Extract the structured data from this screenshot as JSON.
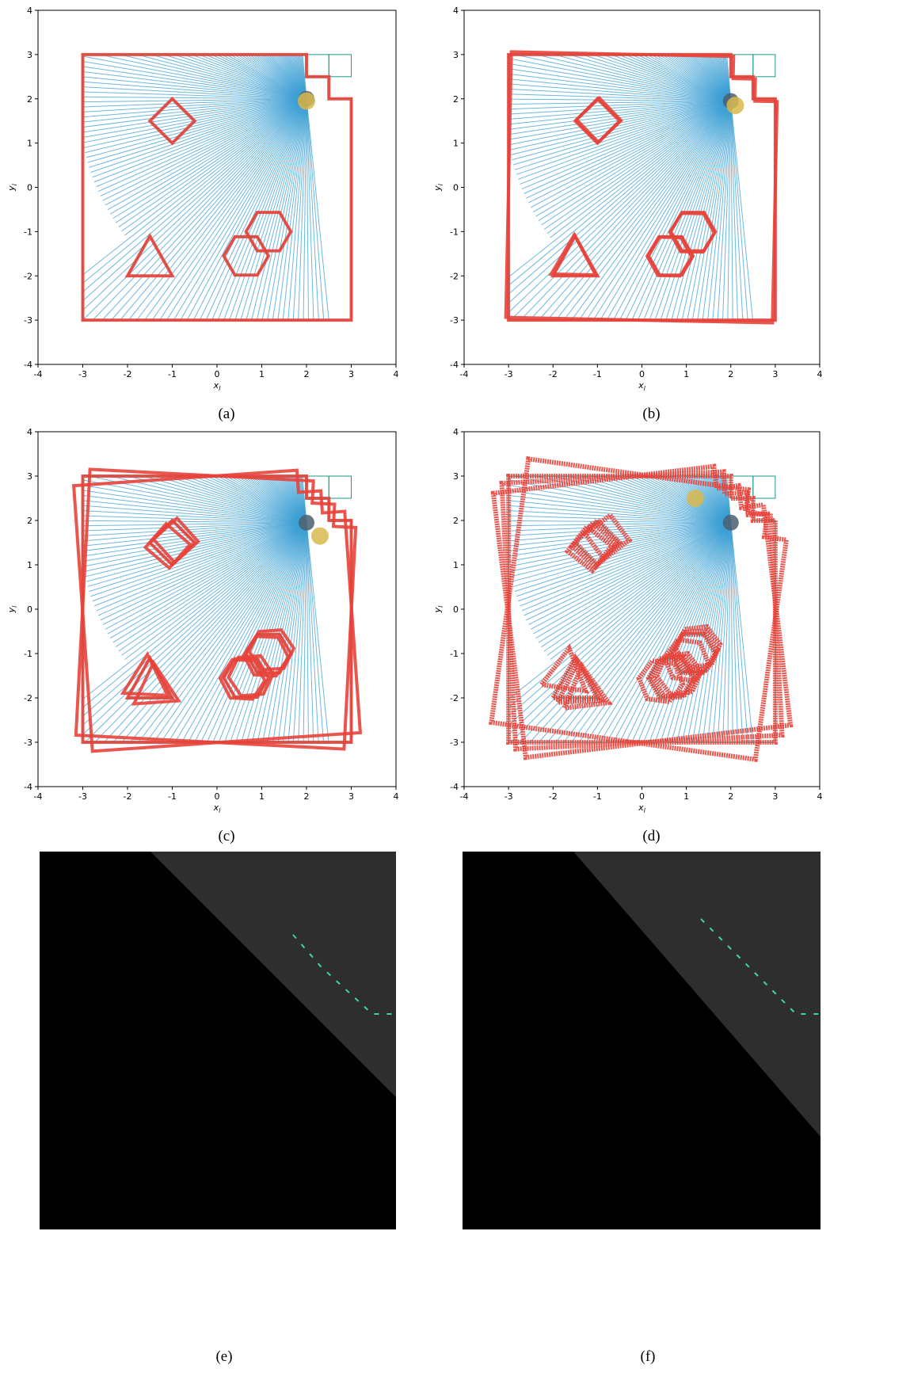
{
  "panels": [
    {
      "caption": "(a)",
      "xlabel": [
        "x",
        "l"
      ],
      "ylabel": [
        "y",
        "l"
      ],
      "xlim": [
        -4,
        4
      ],
      "ylim": [
        -4,
        4
      ],
      "xticks": [
        -4,
        -3,
        -2,
        -1,
        0,
        1,
        2,
        3,
        4
      ],
      "yticks": [
        -4,
        -3,
        -2,
        -1,
        0,
        1,
        2,
        3,
        4
      ]
    },
    {
      "caption": "(b)",
      "xlabel": [
        "x",
        "l"
      ],
      "ylabel": [
        "y",
        "l"
      ],
      "xlim": [
        -4,
        4
      ],
      "ylim": [
        -4,
        4
      ],
      "xticks": [
        -4,
        -3,
        -2,
        -1,
        0,
        1,
        2,
        3,
        4
      ],
      "yticks": [
        -4,
        -3,
        -2,
        -1,
        0,
        1,
        2,
        3,
        4
      ]
    },
    {
      "caption": "(c)",
      "xlabel": [
        "x",
        "l"
      ],
      "ylabel": [
        "y",
        "l"
      ],
      "xlim": [
        -4,
        4
      ],
      "ylim": [
        -4,
        4
      ],
      "xticks": [
        -4,
        -3,
        -2,
        -1,
        0,
        1,
        2,
        3,
        4
      ],
      "yticks": [
        -4,
        -3,
        -2,
        -1,
        0,
        1,
        2,
        3,
        4
      ]
    },
    {
      "caption": "(d)",
      "xlabel": [
        "x",
        "l"
      ],
      "ylabel": [
        "y",
        "l"
      ],
      "xlim": [
        -4,
        4
      ],
      "ylim": [
        -4,
        4
      ],
      "xticks": [
        -4,
        -3,
        -2,
        -1,
        0,
        1,
        2,
        3,
        4
      ],
      "yticks": [
        -4,
        -3,
        -2,
        -1,
        0,
        1,
        2,
        3,
        4
      ]
    }
  ],
  "images": [
    {
      "caption": "(e)"
    },
    {
      "caption": "(f)"
    }
  ]
}
